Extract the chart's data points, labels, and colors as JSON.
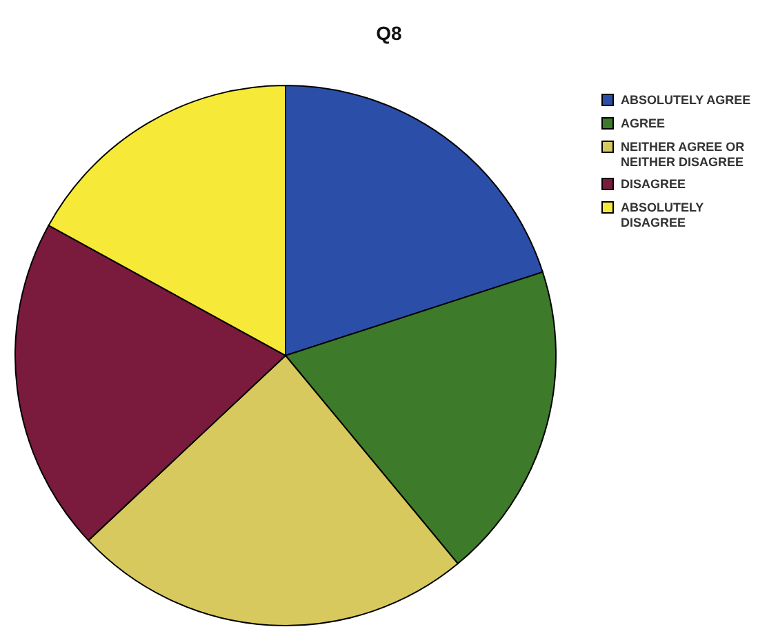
{
  "chart_data": {
    "type": "pie",
    "title": "Q8",
    "categories": [
      "ABSOLUTELY AGREE",
      "AGREE",
      "NEITHER AGREE OR NEITHER DISAGREE",
      "DISAGREE",
      "ABSOLUTELY DISAGREE"
    ],
    "values": [
      20,
      19,
      24,
      20,
      17
    ],
    "colors": [
      "#2b4fa8",
      "#3d7a2a",
      "#d8c95e",
      "#7a1a3c",
      "#f7e938"
    ],
    "legend": "top right"
  }
}
